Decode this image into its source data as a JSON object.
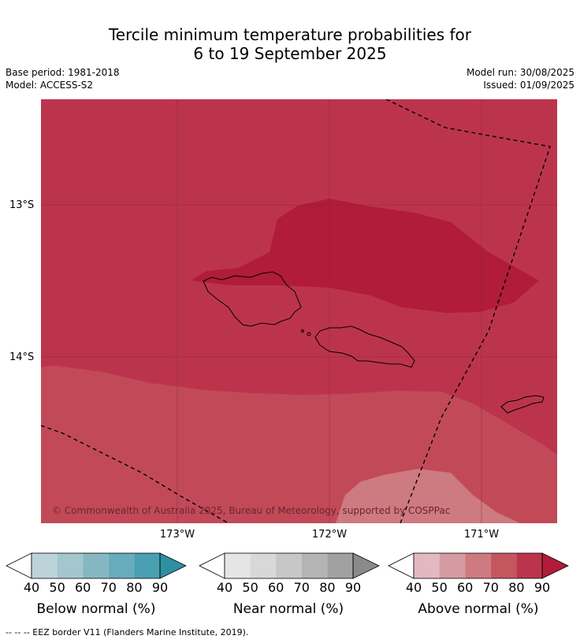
{
  "header": {
    "title_line1": "Tercile minimum temperature probabilities for",
    "title_line2": "6 to 19 September 2025",
    "base_period": "Base period: 1981-2018",
    "model": "Model: ACCESS-S2",
    "model_run": "Model run: 30/08/2025",
    "issued": "Issued: 01/09/2025"
  },
  "map": {
    "lat_labels": [
      "13°S",
      "14°S"
    ],
    "lon_labels": [
      "173°W",
      "172°W",
      "171°W"
    ],
    "copyright": "© Commonwealth of Australia 2025, Bureau of Meteorology, supported by COSPPac",
    "colors": {
      "above_80_90": "#bc344c",
      "above_90_plus": "#b01c3a",
      "above_70_80": "#c24a58",
      "above_60_70": "#cd7a80"
    }
  },
  "legend": {
    "ticks": [
      "40",
      "50",
      "60",
      "70",
      "80",
      "90"
    ],
    "below": {
      "title": "Below normal (%)",
      "colors": [
        "#bdd3da",
        "#a4c6cd",
        "#86b6c2",
        "#68abbb",
        "#48a0b2",
        "#2d90a2"
      ]
    },
    "near": {
      "title": "Near normal (%)",
      "colors": [
        "#e5e5e5",
        "#d8d8d8",
        "#c7c7c7",
        "#b4b4b4",
        "#a1a1a1",
        "#8a8a8a"
      ]
    },
    "above": {
      "title": "Above normal (%)",
      "colors": [
        "#e3b8bf",
        "#d69aa2",
        "#cd7a80",
        "#c4565f",
        "#bc344c",
        "#b01c3a"
      ]
    }
  },
  "footnote": "--  --  -- EEZ border V11 (Flanders Marine Institute, 2019)."
}
